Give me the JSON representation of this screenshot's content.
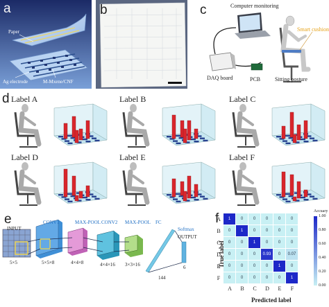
{
  "panels": {
    "a": {
      "letter": "a",
      "labels": {
        "paper": "Paper",
        "ag_electrode": "Ag electrode",
        "mxene": "M-Mxene/CNF"
      }
    },
    "b": {
      "letter": "b"
    },
    "c": {
      "letter": "c",
      "labels": {
        "computer": "Computer monitoring",
        "cushion": "Smart cushion",
        "daq": "DAQ board",
        "pcb": "PCB",
        "posture": "Sitting posture"
      }
    },
    "d": {
      "letter": "d",
      "postures": [
        "Label A",
        "Label B",
        "Label C",
        "Label D",
        "Label E",
        "Label F"
      ]
    },
    "e": {
      "letter": "e",
      "labels": {
        "input": "INPUT",
        "conv1": "CONV1",
        "maxpool1": "MAX-POOL",
        "conv2": "CONV2",
        "maxpool2": "MAX-POOL",
        "fc": "FC",
        "softmax": "Softmax",
        "output": "OUTPUT"
      },
      "dims": [
        "5×5",
        "5×5×8",
        "4×4×8",
        "4×4×16",
        "3×3×16",
        "144",
        "6"
      ]
    },
    "f": {
      "letter": "f"
    }
  },
  "chart_data": {
    "type": "heatmap",
    "title": "",
    "xlabel": "Predicted label",
    "ylabel": "True label",
    "x_categories": [
      "A",
      "B",
      "C",
      "D",
      "E",
      "F"
    ],
    "y_categories": [
      "A",
      "B",
      "C",
      "D",
      "E",
      "F"
    ],
    "values": [
      [
        "1",
        "0",
        "0",
        "0",
        "0",
        "0"
      ],
      [
        "0",
        "1",
        "0",
        "0",
        "0",
        "0"
      ],
      [
        "0",
        "0",
        "1",
        "0",
        "0",
        "0"
      ],
      [
        "0",
        "0",
        "0",
        "0.93",
        "0",
        "0.07"
      ],
      [
        "0",
        "0",
        "0",
        "0",
        "1",
        "0"
      ],
      [
        "0",
        "0",
        "0",
        "0",
        "0",
        "1"
      ]
    ],
    "colorbar": {
      "label": "Accuary",
      "ticks": [
        "1.00",
        "0.80",
        "0.60",
        "0.40",
        "0.20",
        "0.00"
      ],
      "range": [
        0,
        1
      ]
    },
    "colors": {
      "low": "#c8f0f4",
      "high": "#1d28c8"
    }
  }
}
